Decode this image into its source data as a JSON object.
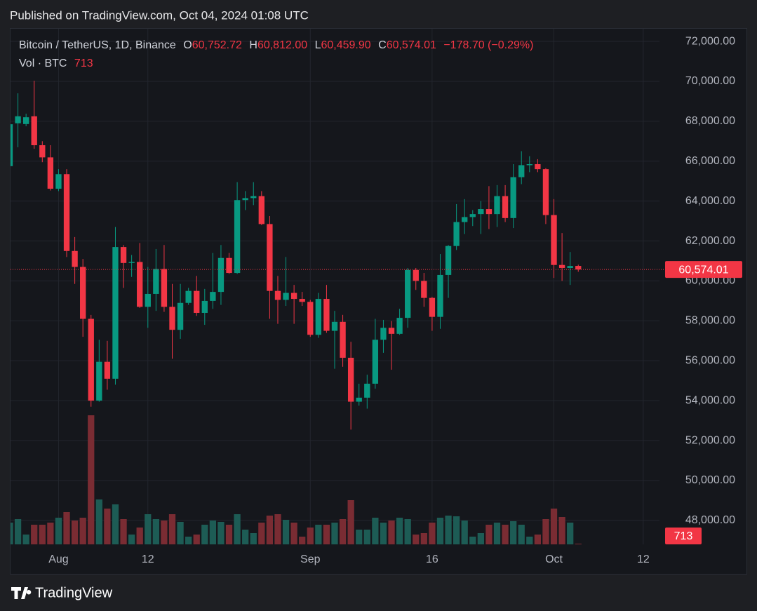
{
  "header": {
    "published": "Published on TradingView.com, Oct 04, 2024 01:08 UTC"
  },
  "footer": {
    "brand": "TradingView"
  },
  "chart_data": {
    "type": "candlestick",
    "title": "Bitcoin / TetherUS, 1D, Binance",
    "legend": {
      "items": [
        {
          "key": "O",
          "value": "60,752.72"
        },
        {
          "key": "H",
          "value": "60,812.00"
        },
        {
          "key": "L",
          "value": "60,459.90"
        },
        {
          "key": "C",
          "value": "60,574.01"
        }
      ],
      "change": "−178.70 (−0.29%)"
    },
    "x": [
      "2024-07-26",
      "2024-07-27",
      "2024-07-28",
      "2024-07-29",
      "2024-07-30",
      "2024-07-31",
      "2024-08-01",
      "2024-08-02",
      "2024-08-03",
      "2024-08-04",
      "2024-08-05",
      "2024-08-06",
      "2024-08-07",
      "2024-08-08",
      "2024-08-09",
      "2024-08-10",
      "2024-08-11",
      "2024-08-12",
      "2024-08-13",
      "2024-08-14",
      "2024-08-15",
      "2024-08-16",
      "2024-08-17",
      "2024-08-18",
      "2024-08-19",
      "2024-08-20",
      "2024-08-21",
      "2024-08-22",
      "2024-08-23",
      "2024-08-24",
      "2024-08-25",
      "2024-08-26",
      "2024-08-27",
      "2024-08-28",
      "2024-08-29",
      "2024-08-30",
      "2024-08-31",
      "2024-09-01",
      "2024-09-02",
      "2024-09-03",
      "2024-09-04",
      "2024-09-05",
      "2024-09-06",
      "2024-09-07",
      "2024-09-08",
      "2024-09-09",
      "2024-09-10",
      "2024-09-11",
      "2024-09-12",
      "2024-09-13",
      "2024-09-14",
      "2024-09-15",
      "2024-09-16",
      "2024-09-17",
      "2024-09-18",
      "2024-09-19",
      "2024-09-20",
      "2024-09-21",
      "2024-09-22",
      "2024-09-23",
      "2024-09-24",
      "2024-09-25",
      "2024-09-26",
      "2024-09-27",
      "2024-09-28",
      "2024-09-29",
      "2024-09-30",
      "2024-10-01",
      "2024-10-02",
      "2024-10-03",
      "2024-10-04"
    ],
    "open": [
      65750,
      67900,
      67860,
      68250,
      66800,
      66190,
      64620,
      65350,
      61500,
      60700,
      58100,
      54000,
      55950,
      55100,
      61700,
      60900,
      60950,
      58700,
      59350,
      60600,
      58700,
      57550,
      58900,
      59500,
      58400,
      59000,
      59450,
      61150,
      60400,
      64050,
      64150,
      64250,
      62850,
      59500,
      59050,
      59400,
      59100,
      58950,
      57300,
      59100,
      57500,
      57950,
      56150,
      53950,
      54150,
      54850,
      57050,
      57650,
      57350,
      58150,
      60550,
      60000,
      59150,
      58200,
      60300,
      61750,
      62950,
      63200,
      63350,
      63600,
      63350,
      64250,
      63150,
      65200,
      65800,
      65850,
      65600,
      63300,
      60800,
      60650,
      60752.72
    ],
    "high": [
      68000,
      69400,
      68380,
      70030,
      67000,
      66800,
      65600,
      65600,
      62200,
      61100,
      58300,
      57050,
      57000,
      62700,
      61800,
      61300,
      61900,
      60700,
      61600,
      61800,
      59850,
      59850,
      59650,
      60250,
      59600,
      61400,
      61800,
      61400,
      64950,
      64500,
      64950,
      64500,
      63250,
      60250,
      61200,
      59800,
      59450,
      59050,
      59400,
      59800,
      58500,
      58300,
      56950,
      54850,
      55300,
      58100,
      58050,
      57990,
      58600,
      60650,
      60650,
      60400,
      59200,
      61350,
      61800,
      63850,
      64100,
      63550,
      64000,
      64750,
      64800,
      64800,
      65850,
      66500,
      66250,
      66100,
      65650,
      64100,
      62400,
      61450,
      60812.0
    ],
    "low": [
      65500,
      66700,
      67750,
      66620,
      65950,
      64530,
      64500,
      61200,
      59850,
      57200,
      53700,
      53950,
      54550,
      54800,
      59650,
      60200,
      58650,
      57650,
      58500,
      58450,
      56100,
      57100,
      58800,
      58250,
      57800,
      58600,
      58800,
      60350,
      60350,
      63550,
      63800,
      62800,
      58100,
      57850,
      58750,
      57850,
      58750,
      57200,
      57150,
      57400,
      55600,
      55700,
      52550,
      53750,
      53600,
      54600,
      56400,
      55550,
      57300,
      57650,
      59550,
      58700,
      57500,
      57600,
      59150,
      61550,
      62350,
      62750,
      62350,
      62600,
      62700,
      62950,
      62650,
      64850,
      65450,
      65450,
      62850,
      60150,
      60000,
      59800,
      60459.9
    ],
    "close": [
      67850,
      68250,
      68200,
      66800,
      66190,
      64620,
      65350,
      61500,
      60700,
      58100,
      54000,
      55950,
      55100,
      61700,
      60900,
      60950,
      58700,
      59350,
      60600,
      58700,
      57550,
      58900,
      59500,
      58400,
      59000,
      59450,
      61150,
      60400,
      64050,
      64150,
      64250,
      62850,
      59500,
      59050,
      59400,
      59100,
      58950,
      57300,
      59100,
      57500,
      57950,
      56150,
      53950,
      54150,
      54850,
      57050,
      57650,
      57350,
      58150,
      60550,
      60000,
      59150,
      58200,
      60300,
      61750,
      62950,
      63200,
      63350,
      63600,
      63350,
      64250,
      63150,
      65200,
      65800,
      65850,
      65600,
      63300,
      60800,
      60650,
      60750,
      60574.01
    ],
    "colors": {
      "up": "#089981",
      "down": "#f23645"
    },
    "volume": {
      "name": "Vol · BTC",
      "colors": {
        "up": "#1d5c55",
        "down": "#7a2c33"
      },
      "values": [
        34100,
        39600,
        15400,
        30800,
        30800,
        34100,
        41800,
        50600,
        37400,
        41800,
        202400,
        70400,
        56100,
        62700,
        39600,
        15400,
        26400,
        47300,
        39600,
        37400,
        47300,
        35200,
        12100,
        15400,
        30800,
        37400,
        35200,
        30800,
        47300,
        23100,
        17600,
        34100,
        45100,
        47300,
        38500,
        34100,
        12100,
        26400,
        30800,
        30800,
        34100,
        39600,
        69300,
        23100,
        23100,
        41800,
        34100,
        37400,
        41800,
        39600,
        15400,
        17600,
        34100,
        41800,
        45100,
        44000,
        37400,
        12100,
        17600,
        30800,
        34100,
        30800,
        36300,
        30800,
        12100,
        15400,
        39600,
        56100,
        42900,
        34100,
        713
      ]
    },
    "xlim": [
      "2024-07-26",
      "2024-10-14"
    ],
    "xticks": [
      {
        "value": "2024-08-01",
        "label": "Aug"
      },
      {
        "value": "2024-08-12",
        "label": "12"
      },
      {
        "value": "2024-09-01",
        "label": "Sep"
      },
      {
        "value": "2024-09-16",
        "label": "16"
      },
      {
        "value": "2024-10-01",
        "label": "Oct"
      },
      {
        "value": "2024-10-12",
        "label": "12"
      }
    ],
    "ylim": [
      46800,
      72670
    ],
    "yticks": [
      {
        "value": 48000,
        "label": "48,000.00"
      },
      {
        "value": 50000,
        "label": "50,000.00"
      },
      {
        "value": 52000,
        "label": "52,000.00"
      },
      {
        "value": 54000,
        "label": "54,000.00"
      },
      {
        "value": 56000,
        "label": "56,000.00"
      },
      {
        "value": 58000,
        "label": "58,000.00"
      },
      {
        "value": 60000,
        "label": "60,000.00"
      },
      {
        "value": 62000,
        "label": "62,000.00"
      },
      {
        "value": 64000,
        "label": "64,000.00"
      },
      {
        "value": 66000,
        "label": "66,000.00"
      },
      {
        "value": 68000,
        "label": "68,000.00"
      },
      {
        "value": 70000,
        "label": "70,000.00"
      },
      {
        "value": 72000,
        "label": "72,000.00"
      }
    ],
    "grid": true
  }
}
